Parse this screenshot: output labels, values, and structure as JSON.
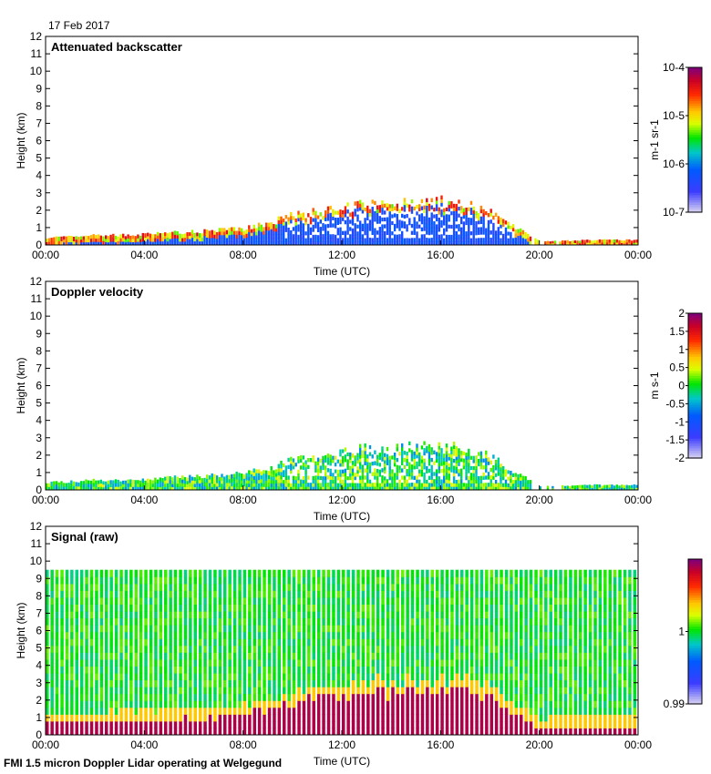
{
  "date_label": "17 Feb 2017",
  "footer": "FMI 1.5 micron Doppler Lidar operating at Welgegund",
  "chart_data": [
    {
      "type": "heatmap",
      "title": "Attenuated backscatter",
      "xlabel": "Time (UTC)",
      "ylabel": "Height (km)",
      "xticks": [
        "00:00",
        "04:00",
        "08:00",
        "12:00",
        "16:00",
        "20:00",
        "00:00"
      ],
      "yticks": [
        "0",
        "1",
        "2",
        "3",
        "4",
        "5",
        "6",
        "7",
        "8",
        "9",
        "10",
        "11",
        "12"
      ],
      "ylim": [
        0,
        12
      ],
      "xlim_hours": [
        0,
        24
      ],
      "colorbar": {
        "label": "m-1 sr-1",
        "ticks": [
          "10-7",
          "10-6",
          "10-5",
          "10-4"
        ],
        "scale": "log",
        "range": [
          1e-07,
          0.0001
        ]
      },
      "hourly_layer_top_km": [
        0.45,
        0.5,
        0.6,
        0.6,
        0.65,
        0.75,
        0.8,
        0.9,
        1.0,
        1.3,
        1.8,
        2.0,
        2.2,
        2.5,
        2.4,
        2.6,
        2.6,
        2.5,
        2.0,
        1.1,
        0.2,
        0.25,
        0.3,
        0.3,
        0.3
      ]
    },
    {
      "type": "heatmap",
      "title": "Doppler velocity",
      "xlabel": "Time (UTC)",
      "ylabel": "Height (km)",
      "xticks": [
        "00:00",
        "04:00",
        "08:00",
        "12:00",
        "16:00",
        "20:00",
        "00:00"
      ],
      "yticks": [
        "0",
        "1",
        "2",
        "3",
        "4",
        "5",
        "6",
        "7",
        "8",
        "9",
        "10",
        "11",
        "12"
      ],
      "ylim": [
        0,
        12
      ],
      "xlim_hours": [
        0,
        24
      ],
      "colorbar": {
        "label": "m s-1",
        "ticks": [
          "-2",
          "-1.5",
          "-1",
          "-0.5",
          "0",
          "0.5",
          "1",
          "1.5",
          "2"
        ],
        "scale": "linear",
        "range": [
          -2,
          2
        ]
      },
      "hourly_layer_top_km": [
        0.45,
        0.5,
        0.6,
        0.6,
        0.65,
        0.75,
        0.8,
        0.9,
        1.0,
        1.3,
        1.8,
        2.0,
        2.2,
        2.5,
        2.4,
        2.6,
        2.6,
        2.5,
        2.0,
        1.1,
        0.2,
        0.25,
        0.3,
        0.3,
        0.3
      ]
    },
    {
      "type": "heatmap",
      "title": "Signal (raw)",
      "xlabel": "Time (UTC)",
      "ylabel": "Height (km)",
      "xticks": [
        "00:00",
        "04:00",
        "08:00",
        "12:00",
        "16:00",
        "20:00",
        "00:00"
      ],
      "yticks": [
        "0",
        "1",
        "2",
        "3",
        "4",
        "5",
        "6",
        "7",
        "8",
        "9",
        "10",
        "11",
        "12"
      ],
      "ylim": [
        0,
        12
      ],
      "xlim_hours": [
        0,
        24
      ],
      "colorbar": {
        "label": "",
        "ticks": [
          "0.99",
          "1"
        ],
        "scale": "linear",
        "range": [
          0.99,
          1.01
        ]
      },
      "max_range_km": 9.5,
      "hourly_layer_top_km": [
        0.45,
        0.5,
        0.6,
        0.6,
        0.65,
        0.75,
        0.8,
        0.9,
        1.0,
        1.3,
        1.8,
        2.0,
        2.2,
        2.5,
        2.4,
        2.6,
        2.6,
        2.5,
        2.0,
        1.1,
        0.2,
        0.25,
        0.3,
        0.3,
        0.3
      ]
    }
  ]
}
